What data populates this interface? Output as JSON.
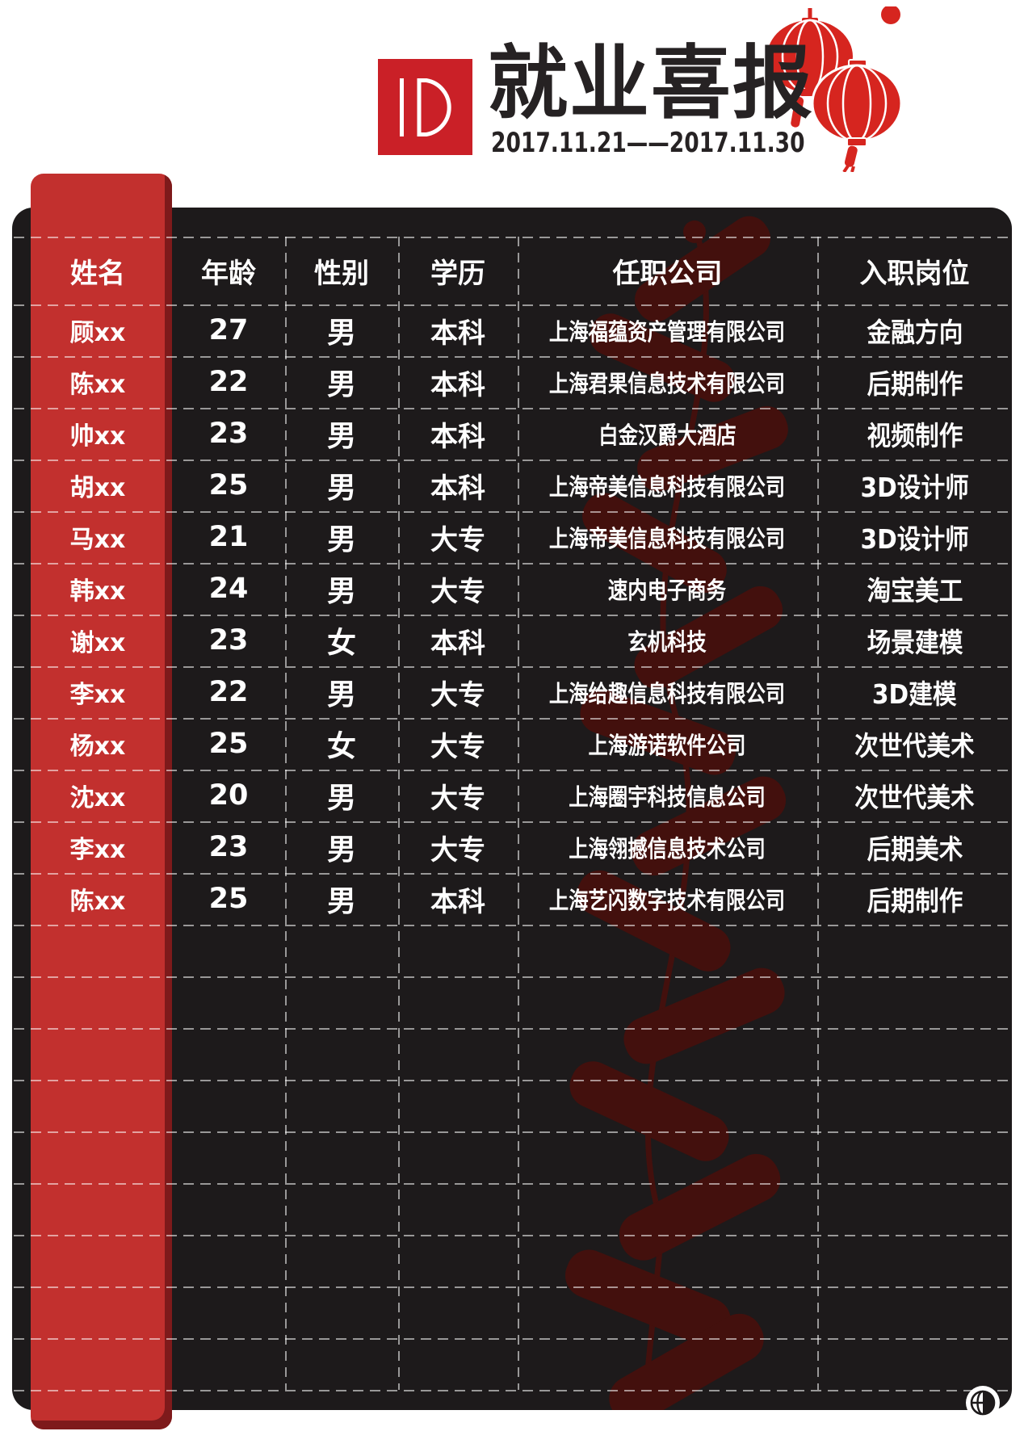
{
  "header": {
    "logo_text": "ID",
    "title": "就业喜报",
    "date_range": "2017.11.21——2017.11.30"
  },
  "table": {
    "columns": [
      "姓名",
      "年龄",
      "性别",
      "学历",
      "任职公司",
      "入职岗位"
    ],
    "rows": [
      {
        "name": "顾xx",
        "age": "27",
        "gender": "男",
        "education": "本科",
        "company": "上海福蕴资产管理有限公司",
        "position": "金融方向"
      },
      {
        "name": "陈xx",
        "age": "22",
        "gender": "男",
        "education": "本科",
        "company": "上海君果信息技术有限公司",
        "position": "后期制作"
      },
      {
        "name": "帅xx",
        "age": "23",
        "gender": "男",
        "education": "本科",
        "company": "白金汉爵大酒店",
        "position": "视频制作"
      },
      {
        "name": "胡xx",
        "age": "25",
        "gender": "男",
        "education": "本科",
        "company": "上海帝美信息科技有限公司",
        "position": "3D设计师"
      },
      {
        "name": "马xx",
        "age": "21",
        "gender": "男",
        "education": "大专",
        "company": "上海帝美信息科技有限公司",
        "position": "3D设计师"
      },
      {
        "name": "韩xx",
        "age": "24",
        "gender": "男",
        "education": "大专",
        "company": "速内电子商务",
        "position": "淘宝美工"
      },
      {
        "name": "谢xx",
        "age": "23",
        "gender": "女",
        "education": "本科",
        "company": "玄机科技",
        "position": "场景建模"
      },
      {
        "name": "李xx",
        "age": "22",
        "gender": "男",
        "education": "大专",
        "company": "上海给趣信息科技有限公司",
        "position": "3D建模"
      },
      {
        "name": "杨xx",
        "age": "25",
        "gender": "女",
        "education": "大专",
        "company": "上海游诺软件公司",
        "position": "次世代美术"
      },
      {
        "name": "沈xx",
        "age": "20",
        "gender": "男",
        "education": "大专",
        "company": "上海圈宇科技信息公司",
        "position": "次世代美术"
      },
      {
        "name": "李xx",
        "age": "23",
        "gender": "男",
        "education": "大专",
        "company": "上海翎撼信息技术公司",
        "position": "后期美术"
      },
      {
        "name": "陈xx",
        "age": "25",
        "gender": "男",
        "education": "本科",
        "company": "上海艺闪数字技术有限公司",
        "position": "后期制作"
      }
    ],
    "empty_row_count": 9
  },
  "icons": {
    "lantern": "lantern-icon",
    "firecracker": "firecracker-art",
    "logo": "id-logo",
    "globe": "globe-logo-icon"
  },
  "colors": {
    "accent_red": "#c2302e",
    "accent_dark_red": "#7e1a1b",
    "logo_red": "#ca2027",
    "lantern_red": "#d6251f",
    "panel_dark": "#1d1a1b",
    "art_maroon": "#43100d",
    "ink": "#262223"
  }
}
